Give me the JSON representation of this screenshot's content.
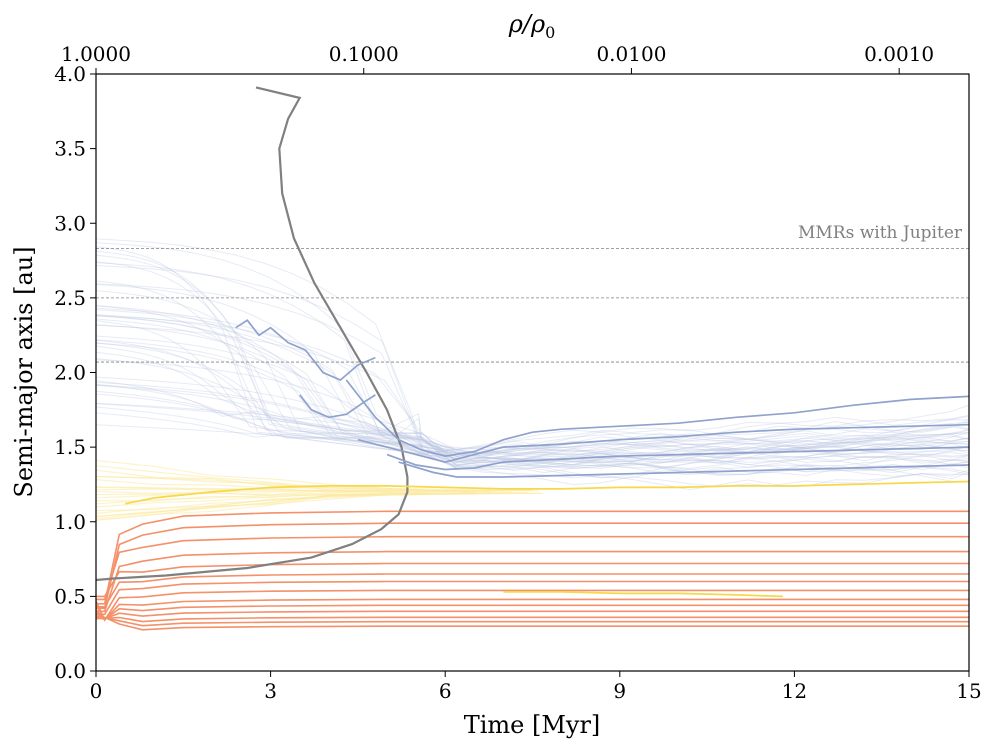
{
  "chart_data": {
    "type": "line",
    "xlabel": "Time [Myr]",
    "ylabel": "Semi-major axis [au]",
    "top_axis_label": "ρ/ρ₀",
    "top_axis_label_parts": {
      "base": "ρ/ρ",
      "sub": "0"
    },
    "xlim": [
      0,
      15
    ],
    "ylim": [
      0,
      4
    ],
    "xticks": [
      0,
      3,
      6,
      9,
      12,
      15
    ],
    "xtick_labels": [
      "0",
      "3",
      "6",
      "9",
      "12",
      "15"
    ],
    "yticks": [
      0,
      0.5,
      1,
      1.5,
      2,
      2.5,
      3,
      3.5,
      4
    ],
    "ytick_labels": [
      "0.0",
      "0.5",
      "1.0",
      "1.5",
      "2.0",
      "2.5",
      "3.0",
      "3.5",
      "4.0"
    ],
    "top_ticks_time": [
      0,
      4.6,
      9.2,
      13.8
    ],
    "top_tick_labels": [
      "1.0000",
      "0.1000",
      "0.0100",
      "0.0010"
    ],
    "mmr_lines": [
      2.07,
      2.5,
      2.83
    ],
    "annotation": "MMRs with Jupiter",
    "colors": {
      "blue": "#8fa2cd",
      "yellow": "#f7d84a",
      "orange": "#f4906a",
      "gray": "#808080",
      "faint_blue": "#b9c5e2",
      "faint_yellow": "#fbeaa0"
    },
    "series": [
      {
        "name": "gas-density-track",
        "color": "gray",
        "x": [
          2.75,
          3.5,
          3.3,
          3.15,
          3.2,
          3.4,
          3.75,
          4.2,
          4.65,
          5.0,
          5.25,
          5.35,
          5.35,
          5.2,
          4.9,
          4.4,
          3.7,
          2.6,
          1.2,
          0.3,
          0.0
        ],
        "y": [
          3.91,
          3.84,
          3.7,
          3.5,
          3.2,
          2.9,
          2.6,
          2.3,
          2.0,
          1.75,
          1.5,
          1.3,
          1.2,
          1.05,
          0.95,
          0.85,
          0.76,
          0.69,
          0.64,
          0.62,
          0.61
        ]
      },
      {
        "name": "blue-survivor-1",
        "color": "blue",
        "x": [
          4.3,
          4.8,
          5.2,
          5.6,
          6.0,
          6.5,
          7.0,
          7.5,
          8.0,
          9.0,
          10.0,
          11.0,
          12.0,
          13.0,
          14.0,
          15.0
        ],
        "y": [
          1.95,
          1.7,
          1.55,
          1.48,
          1.44,
          1.47,
          1.55,
          1.6,
          1.62,
          1.64,
          1.66,
          1.7,
          1.73,
          1.78,
          1.82,
          1.84
        ]
      },
      {
        "name": "blue-survivor-2",
        "color": "blue",
        "x": [
          4.5,
          5.0,
          5.5,
          6.0,
          6.5,
          7.0,
          8.0,
          9.0,
          10.0,
          11.0,
          12.0,
          13.0,
          14.0,
          15.0
        ],
        "y": [
          1.55,
          1.5,
          1.45,
          1.4,
          1.45,
          1.5,
          1.52,
          1.55,
          1.57,
          1.6,
          1.62,
          1.63,
          1.64,
          1.65
        ]
      },
      {
        "name": "blue-survivor-3",
        "color": "blue",
        "x": [
          5.0,
          5.5,
          6.0,
          6.5,
          7.0,
          8.0,
          9.0,
          10.0,
          11.0,
          12.0,
          13.0,
          14.0,
          15.0
        ],
        "y": [
          1.45,
          1.38,
          1.35,
          1.36,
          1.4,
          1.42,
          1.44,
          1.45,
          1.46,
          1.47,
          1.48,
          1.49,
          1.5
        ]
      },
      {
        "name": "blue-survivor-4",
        "color": "blue",
        "x": [
          5.2,
          5.8,
          6.2,
          7.0,
          8.0,
          9.0,
          10.0,
          11.0,
          12.0,
          13.0,
          14.0,
          15.0
        ],
        "y": [
          1.4,
          1.33,
          1.3,
          1.3,
          1.31,
          1.32,
          1.33,
          1.34,
          1.35,
          1.36,
          1.37,
          1.38
        ]
      },
      {
        "name": "blue-fragment-1",
        "color": "blue",
        "x": [
          2.4,
          2.6,
          2.8,
          3.0,
          3.3,
          3.6,
          3.9,
          4.2,
          4.5,
          4.8
        ],
        "y": [
          2.3,
          2.35,
          2.25,
          2.3,
          2.2,
          2.15,
          2.0,
          1.95,
          2.05,
          2.1
        ]
      },
      {
        "name": "blue-fragment-2",
        "color": "blue",
        "x": [
          3.5,
          3.7,
          4.0,
          4.3,
          4.6,
          4.8
        ],
        "y": [
          1.85,
          1.75,
          1.7,
          1.72,
          1.8,
          1.85
        ]
      },
      {
        "name": "yellow-survivor",
        "color": "yellow",
        "x": [
          0.5,
          1.0,
          2.0,
          3.0,
          4.0,
          5.0,
          6.0,
          7.0,
          8.0,
          9.0,
          10.0,
          11.0,
          12.0,
          13.0,
          14.0,
          15.0
        ],
        "y": [
          1.12,
          1.16,
          1.2,
          1.23,
          1.24,
          1.24,
          1.23,
          1.22,
          1.22,
          1.23,
          1.23,
          1.24,
          1.24,
          1.25,
          1.26,
          1.27
        ]
      },
      {
        "name": "yellow-inner",
        "color": "yellow",
        "x": [
          7.0,
          8.0,
          9.0,
          10.0,
          11.0,
          11.8
        ],
        "y": [
          0.53,
          0.53,
          0.52,
          0.52,
          0.51,
          0.5
        ]
      }
    ],
    "orange_final_values": [
      1.07,
      0.99,
      0.9,
      0.8,
      0.72,
      0.65,
      0.6,
      0.54,
      0.48,
      0.44,
      0.4,
      0.36,
      0.33,
      0.3
    ],
    "orange_initial_values": [
      0.45,
      0.42,
      0.48,
      0.4,
      0.5,
      0.43,
      0.38,
      0.47,
      0.41,
      0.36,
      0.44,
      0.39,
      0.35,
      0.37
    ]
  }
}
